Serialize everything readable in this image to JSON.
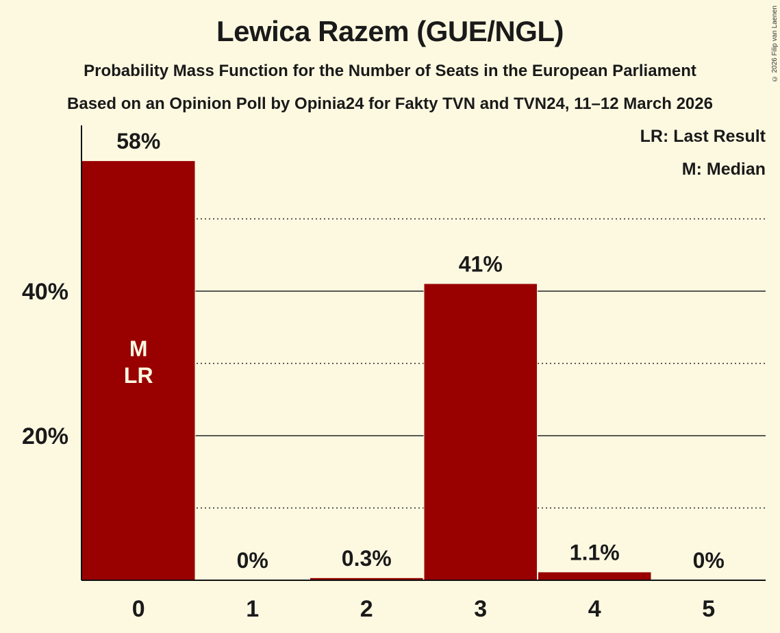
{
  "header": {
    "title": "Lewica Razem (GUE/NGL)",
    "subtitle": "Probability Mass Function for the Number of Seats in the European Parliament",
    "source": "Based on an Opinion Poll by Opinia24 for Fakty TVN and TVN24, 11–12 March 2026",
    "copyright": "© 2026 Filip van Laenen"
  },
  "legend": {
    "last_result": "LR: Last Result",
    "median": "M: Median"
  },
  "colors": {
    "background": "#fdf9e1",
    "bar": "#990000",
    "text": "#1a1a1a",
    "bar_label": "#fdf9e1"
  },
  "chart_data": {
    "type": "bar",
    "title": "Lewica Razem (GUE/NGL)",
    "subtitle": "Probability Mass Function for the Number of Seats in the European Parliament",
    "xlabel": "",
    "ylabel": "",
    "categories": [
      "0",
      "1",
      "2",
      "3",
      "4",
      "5"
    ],
    "values": [
      58,
      0,
      0.3,
      41,
      1.1,
      0
    ],
    "value_labels": [
      "58%",
      "0%",
      "0.3%",
      "41%",
      "1.1%",
      "0%"
    ],
    "ylim": [
      0,
      63
    ],
    "yticks": [
      20,
      40
    ],
    "ytick_labels": [
      "20%",
      "40%"
    ],
    "minor_gridlines": [
      10,
      30,
      50
    ],
    "grid": true,
    "annotations": [
      {
        "category": "0",
        "text": "M"
      },
      {
        "category": "0",
        "text": "LR"
      }
    ],
    "legend_position": "top-right"
  }
}
